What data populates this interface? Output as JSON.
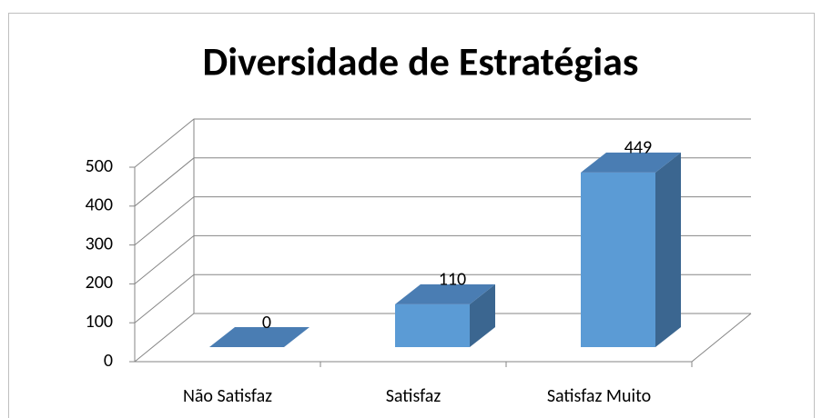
{
  "chart_data": {
    "type": "bar3d",
    "title": "Diversidade de Estratégias",
    "categories": [
      "Não Satisfaz",
      "Satisfaz",
      "Satisfaz Muito"
    ],
    "values": [
      0,
      110,
      449
    ],
    "color": "#5b9bd5",
    "ylim": [
      0,
      500
    ],
    "yticks": [
      0,
      100,
      200,
      300,
      400,
      500
    ],
    "grid": true
  }
}
